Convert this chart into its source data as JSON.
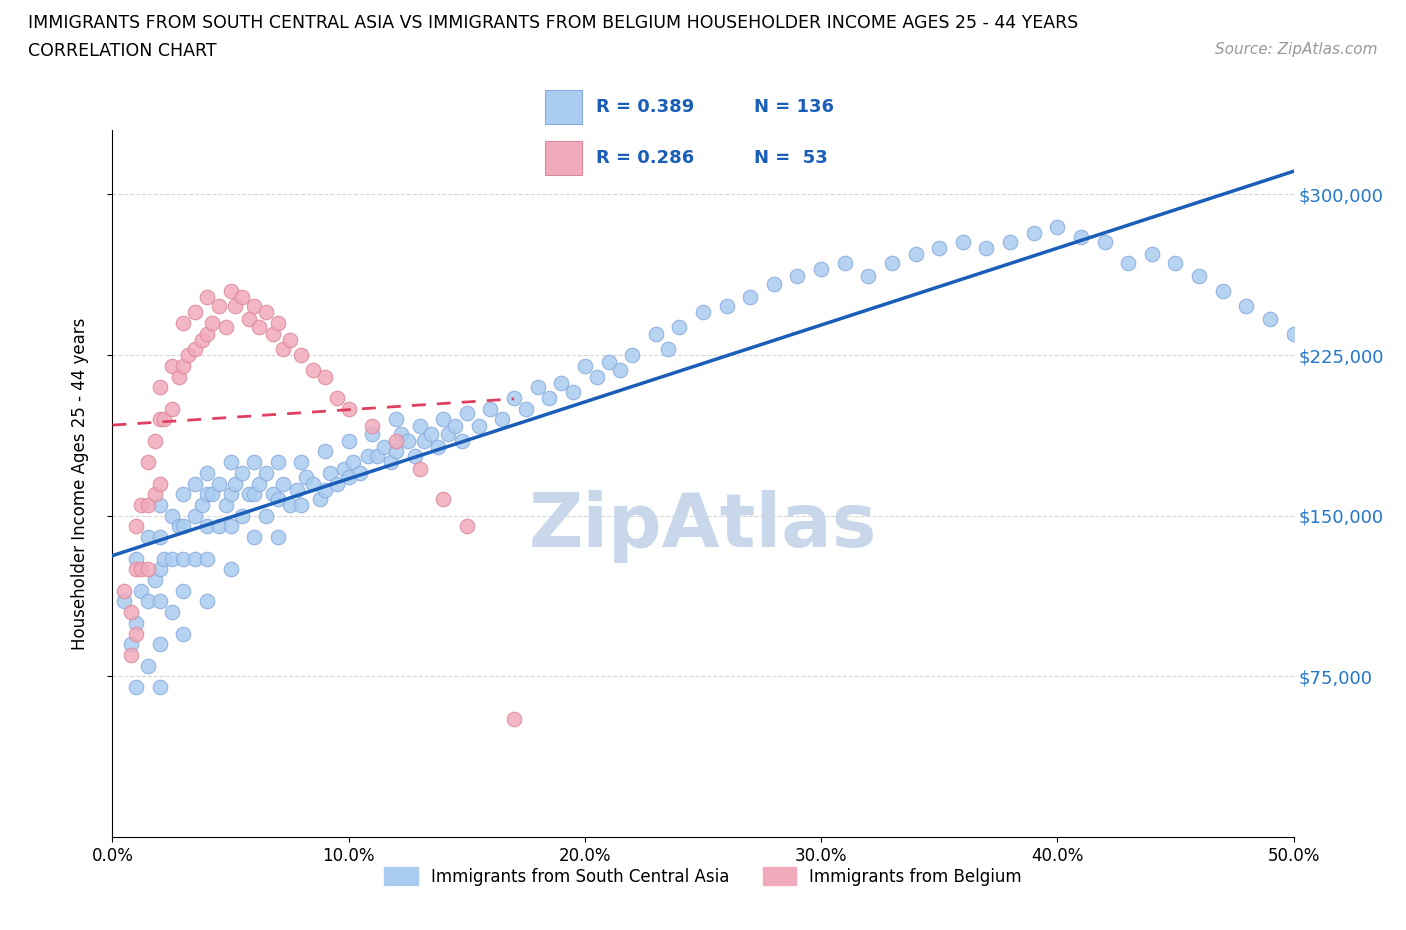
{
  "title_line1": "IMMIGRANTS FROM SOUTH CENTRAL ASIA VS IMMIGRANTS FROM BELGIUM HOUSEHOLDER INCOME AGES 25 - 44 YEARS",
  "title_line2": "CORRELATION CHART",
  "source_text": "Source: ZipAtlas.com",
  "ylabel": "Householder Income Ages 25 - 44 years",
  "legend_label1": "Immigrants from South Central Asia",
  "legend_label2": "Immigrants from Belgium",
  "R1": 0.389,
  "N1": 136,
  "R2": 0.286,
  "N2": 53,
  "color1": "#aaccf0",
  "color2": "#f0aabb",
  "edge_color1": "#88aadd",
  "edge_color2": "#dd8899",
  "trendline1_color": "#1a5eb8",
  "trendline2_color": "#e04060",
  "watermark": "ZipAtlas",
  "watermark_color": "#c8d8ea",
  "xlim": [
    0.0,
    0.5
  ],
  "ylim": [
    0,
    330000
  ],
  "xticks": [
    0.0,
    0.1,
    0.2,
    0.3,
    0.4,
    0.5
  ],
  "xtick_labels": [
    "0.0%",
    "10.0%",
    "20.0%",
    "30.0%",
    "40.0%",
    "50.0%"
  ],
  "ytick_labels": [
    "$75,000",
    "$150,000",
    "$225,000",
    "$300,000"
  ],
  "ytick_values": [
    75000,
    150000,
    225000,
    300000
  ],
  "blue_x": [
    0.005,
    0.008,
    0.01,
    0.01,
    0.01,
    0.012,
    0.015,
    0.015,
    0.015,
    0.018,
    0.02,
    0.02,
    0.02,
    0.02,
    0.02,
    0.02,
    0.022,
    0.025,
    0.025,
    0.025,
    0.028,
    0.03,
    0.03,
    0.03,
    0.03,
    0.03,
    0.035,
    0.035,
    0.035,
    0.038,
    0.04,
    0.04,
    0.04,
    0.04,
    0.04,
    0.042,
    0.045,
    0.045,
    0.048,
    0.05,
    0.05,
    0.05,
    0.05,
    0.052,
    0.055,
    0.055,
    0.058,
    0.06,
    0.06,
    0.06,
    0.062,
    0.065,
    0.065,
    0.068,
    0.07,
    0.07,
    0.07,
    0.072,
    0.075,
    0.078,
    0.08,
    0.08,
    0.082,
    0.085,
    0.088,
    0.09,
    0.09,
    0.092,
    0.095,
    0.098,
    0.1,
    0.1,
    0.102,
    0.105,
    0.108,
    0.11,
    0.112,
    0.115,
    0.118,
    0.12,
    0.12,
    0.122,
    0.125,
    0.128,
    0.13,
    0.132,
    0.135,
    0.138,
    0.14,
    0.142,
    0.145,
    0.148,
    0.15,
    0.155,
    0.16,
    0.165,
    0.17,
    0.175,
    0.18,
    0.185,
    0.19,
    0.195,
    0.2,
    0.205,
    0.21,
    0.215,
    0.22,
    0.23,
    0.235,
    0.24,
    0.25,
    0.26,
    0.27,
    0.28,
    0.29,
    0.3,
    0.31,
    0.32,
    0.33,
    0.34,
    0.35,
    0.36,
    0.37,
    0.38,
    0.39,
    0.4,
    0.41,
    0.42,
    0.43,
    0.44,
    0.45,
    0.46,
    0.47,
    0.48,
    0.49,
    0.5
  ],
  "blue_y": [
    110000,
    90000,
    130000,
    100000,
    70000,
    115000,
    140000,
    110000,
    80000,
    120000,
    155000,
    140000,
    125000,
    110000,
    90000,
    70000,
    130000,
    150000,
    130000,
    105000,
    145000,
    160000,
    145000,
    130000,
    115000,
    95000,
    165000,
    150000,
    130000,
    155000,
    170000,
    160000,
    145000,
    130000,
    110000,
    160000,
    165000,
    145000,
    155000,
    175000,
    160000,
    145000,
    125000,
    165000,
    170000,
    150000,
    160000,
    175000,
    160000,
    140000,
    165000,
    170000,
    150000,
    160000,
    175000,
    158000,
    140000,
    165000,
    155000,
    162000,
    175000,
    155000,
    168000,
    165000,
    158000,
    180000,
    162000,
    170000,
    165000,
    172000,
    185000,
    168000,
    175000,
    170000,
    178000,
    188000,
    178000,
    182000,
    175000,
    195000,
    180000,
    188000,
    185000,
    178000,
    192000,
    185000,
    188000,
    182000,
    195000,
    188000,
    192000,
    185000,
    198000,
    192000,
    200000,
    195000,
    205000,
    200000,
    210000,
    205000,
    212000,
    208000,
    220000,
    215000,
    222000,
    218000,
    225000,
    235000,
    228000,
    238000,
    245000,
    248000,
    252000,
    258000,
    262000,
    265000,
    268000,
    262000,
    268000,
    272000,
    275000,
    278000,
    275000,
    278000,
    282000,
    285000,
    280000,
    278000,
    268000,
    272000,
    268000,
    262000,
    255000,
    248000,
    242000,
    235000
  ],
  "pink_x": [
    0.005,
    0.008,
    0.008,
    0.01,
    0.01,
    0.01,
    0.012,
    0.012,
    0.015,
    0.015,
    0.015,
    0.018,
    0.018,
    0.02,
    0.02,
    0.02,
    0.022,
    0.025,
    0.025,
    0.028,
    0.03,
    0.03,
    0.032,
    0.035,
    0.035,
    0.038,
    0.04,
    0.04,
    0.042,
    0.045,
    0.048,
    0.05,
    0.052,
    0.055,
    0.058,
    0.06,
    0.062,
    0.065,
    0.068,
    0.07,
    0.072,
    0.075,
    0.08,
    0.085,
    0.09,
    0.095,
    0.1,
    0.11,
    0.12,
    0.13,
    0.14,
    0.15,
    0.17
  ],
  "pink_y": [
    115000,
    105000,
    85000,
    145000,
    125000,
    95000,
    155000,
    125000,
    175000,
    155000,
    125000,
    185000,
    160000,
    210000,
    195000,
    165000,
    195000,
    220000,
    200000,
    215000,
    240000,
    220000,
    225000,
    245000,
    228000,
    232000,
    252000,
    235000,
    240000,
    248000,
    238000,
    255000,
    248000,
    252000,
    242000,
    248000,
    238000,
    245000,
    235000,
    240000,
    228000,
    232000,
    225000,
    218000,
    215000,
    205000,
    200000,
    192000,
    185000,
    172000,
    158000,
    145000,
    55000
  ]
}
